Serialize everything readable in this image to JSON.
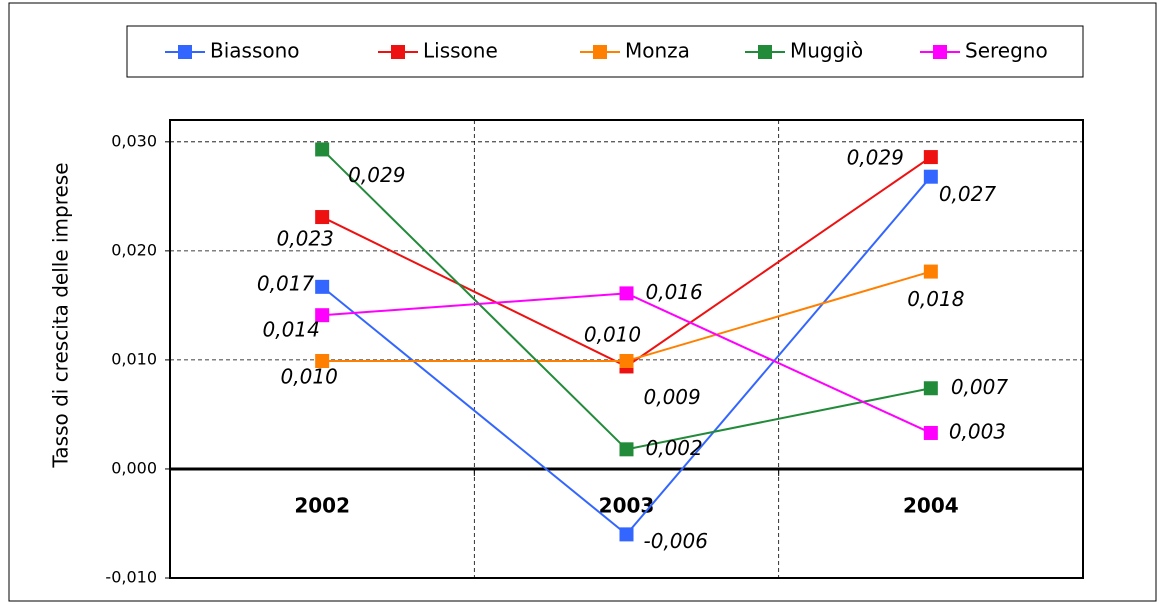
{
  "chart_data": {
    "type": "line",
    "ylabel": "Tasso di crescita delle imprese",
    "categories": [
      "2002",
      "2003",
      "2004"
    ],
    "series": [
      {
        "name": "Biassono",
        "color": "#3366ff",
        "values": [
          0.0167,
          -0.006,
          0.0268
        ],
        "value_labels": [
          "0,017",
          "-0,006",
          "0,027"
        ]
      },
      {
        "name": "Lissone",
        "color": "#ee1111",
        "values": [
          0.0231,
          0.0094,
          0.0286
        ],
        "value_labels": [
          "0,023",
          "0,009",
          "0,029"
        ]
      },
      {
        "name": "Monza",
        "color": "#ff8000",
        "values": [
          0.0099,
          0.0099,
          0.0181
        ],
        "value_labels": [
          "0,010",
          "0,010",
          "0,018"
        ]
      },
      {
        "name": "Muggiò",
        "color": "#228b3a",
        "values": [
          0.0293,
          0.0018,
          0.0074
        ],
        "value_labels": [
          "0,029",
          "0,002",
          "0,007"
        ]
      },
      {
        "name": "Seregno",
        "color": "#ff00ff",
        "values": [
          0.0141,
          0.0161,
          0.0033
        ],
        "value_labels": [
          "0,014",
          "0,016",
          "0,003"
        ]
      }
    ],
    "ylim": [
      -0.01,
      0.032
    ],
    "yticks": [
      {
        "value": -0.01,
        "label": "-0,010"
      },
      {
        "value": 0,
        "label": "0,000"
      },
      {
        "value": 0.01,
        "label": "0,010"
      },
      {
        "value": 0.02,
        "label": "0,020"
      },
      {
        "value": 0.03,
        "label": "0,030"
      }
    ],
    "grid": true,
    "legend": "top"
  }
}
